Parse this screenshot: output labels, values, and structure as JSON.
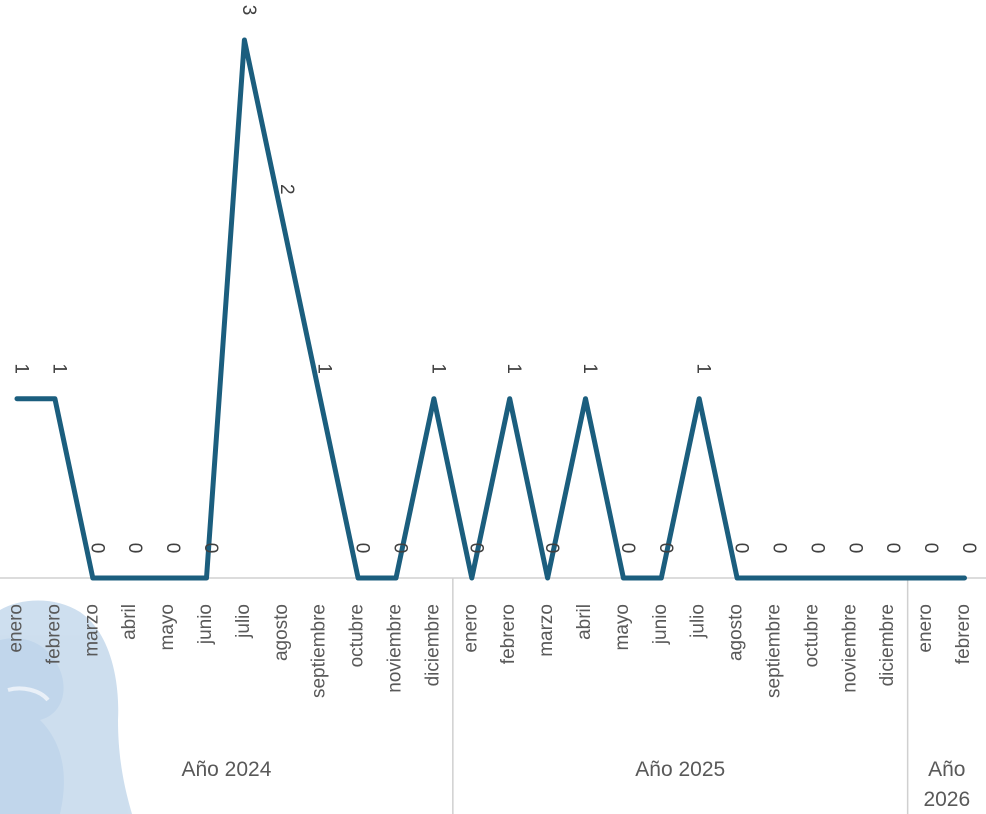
{
  "chart_data": {
    "type": "line",
    "title": "",
    "xlabel": "",
    "ylabel": "",
    "ylim": [
      0,
      3
    ],
    "grid": false,
    "legend": "none",
    "line_color": "#1b5e7e",
    "categories": [
      "enero",
      "febrero",
      "marzo",
      "abril",
      "mayo",
      "junio",
      "julio",
      "agosto",
      "septiembre",
      "octubre",
      "noviembre",
      "diciembre",
      "enero",
      "febrero",
      "marzo",
      "abril",
      "mayo",
      "junio",
      "julio",
      "agosto",
      "septiembre",
      "octubre",
      "noviembre",
      "diciembre",
      "enero",
      "febrero"
    ],
    "values": [
      1,
      1,
      0,
      0,
      0,
      0,
      3,
      2,
      1,
      0,
      0,
      1,
      0,
      1,
      0,
      1,
      0,
      0,
      1,
      0,
      0,
      0,
      0,
      0,
      0,
      0
    ],
    "data_labels": [
      "1",
      "1",
      "0",
      "0",
      "0",
      "0",
      "3",
      "2",
      "1",
      "0",
      "0",
      "1",
      "0",
      "1",
      "0",
      "1",
      "0",
      "0",
      "1",
      "0",
      "0",
      "0",
      "0",
      "0",
      "0",
      "0"
    ],
    "groups": [
      {
        "label": "Año 2024",
        "start": 0,
        "count": 12
      },
      {
        "label": "Año 2025",
        "start": 12,
        "count": 12
      },
      {
        "label": "Año 2026",
        "start": 24,
        "count": 2,
        "lines": [
          "Año",
          "2026"
        ]
      }
    ]
  }
}
